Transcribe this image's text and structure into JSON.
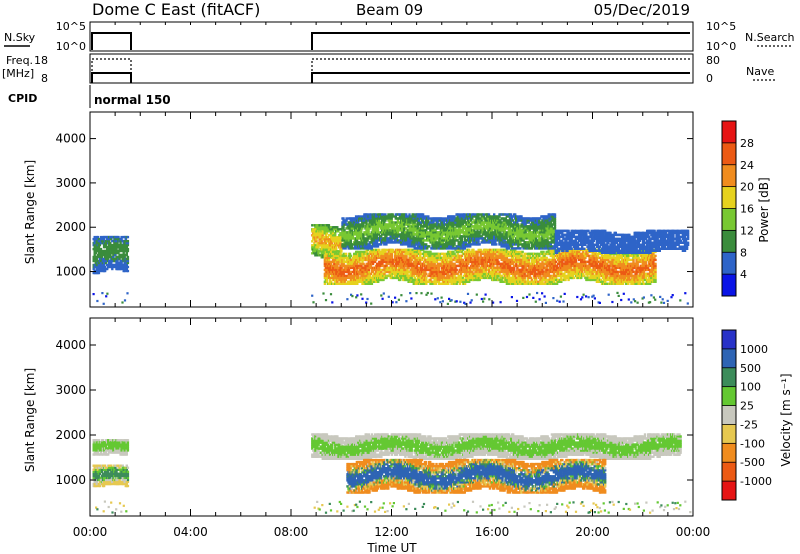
{
  "header": {
    "station": "Dome C East (fitACF)",
    "beam": "Beam 09",
    "date": "05/Dec/2019"
  },
  "noise_panel": {
    "left_label": "N.Sky",
    "right_label": "N.Search",
    "left_ticks": [
      "10^5",
      "10^0"
    ],
    "right_ticks": [
      "10^5",
      "10^0"
    ]
  },
  "freq_panel": {
    "left_label_1": "Freq.",
    "left_label_2": "[MHz]",
    "right_label": "Nave",
    "left_ticks": [
      "18",
      "8"
    ],
    "right_ticks": [
      "80",
      "0"
    ]
  },
  "cpid": {
    "label": "CPID",
    "value": "normal 150"
  },
  "power_panel": {
    "ylabel": "Slant Range [km]",
    "yticks": [
      "4000",
      "3000",
      "2000",
      "1000"
    ],
    "colorbar_label": "Power [dB]",
    "colorbar_ticks": [
      "28",
      "24",
      "20",
      "16",
      "12",
      "8",
      "4"
    ],
    "colors": [
      "#0a14e6",
      "#2e64c8",
      "#3a8c3c",
      "#78c832",
      "#e6d21e",
      "#f08c1e",
      "#ec5a14",
      "#e61414"
    ]
  },
  "velocity_panel": {
    "ylabel": "Slant Range [km]",
    "yticks": [
      "4000",
      "3000",
      "2000",
      "1000"
    ],
    "colorbar_label": "Velocity [m s⁻¹]",
    "colorbar_ticks": [
      "1000",
      "500",
      "100",
      "25",
      "-25",
      "-100",
      "-500",
      "-1000"
    ],
    "colors": [
      "#2832c8",
      "#2e64b4",
      "#3c8c5a",
      "#64c832",
      "#c8c8be",
      "#e6c850",
      "#f08c1e",
      "#ec5a14",
      "#e61414"
    ]
  },
  "time_axis": {
    "xlabel": "Time UT",
    "ticks": [
      "00:00",
      "04:00",
      "08:00",
      "12:00",
      "16:00",
      "20:00",
      "00:00"
    ]
  },
  "chart_data": {
    "type": "heatmap",
    "title": "Dome C East (fitACF)",
    "subtitle": "Beam 09",
    "date": "05/Dec/2019",
    "x_unit": "hours UT",
    "xlim": [
      0,
      24
    ],
    "ylim": [
      200,
      4600
    ],
    "data_intervals_hours": [
      [
        0.1,
        1.55
      ],
      [
        8.8,
        23.9
      ]
    ],
    "power_features": [
      {
        "t": [
          0.1,
          1.5
        ],
        "r": [
          900,
          1800
        ],
        "level_db": [
          4,
          12
        ]
      },
      {
        "t": [
          8.8,
          10.0
        ],
        "r": [
          1300,
          2050
        ],
        "level_db": [
          8,
          24
        ]
      },
      {
        "t": [
          9.3,
          22.5
        ],
        "r": [
          700,
          1500
        ],
        "level_db": [
          12,
          28
        ]
      },
      {
        "t": [
          10.0,
          18.5
        ],
        "r": [
          1500,
          2300
        ],
        "level_db": [
          4,
          16
        ]
      },
      {
        "t": [
          18.5,
          23.8
        ],
        "r": [
          1400,
          1900
        ],
        "level_db": [
          4,
          8
        ]
      }
    ],
    "velocity_features": [
      {
        "t": [
          0.1,
          1.5
        ],
        "r": [
          1500,
          1900
        ],
        "v_ms": [
          -25,
          25
        ]
      },
      {
        "t": [
          0.1,
          1.5
        ],
        "r": [
          800,
          1300
        ],
        "v_ms": [
          -100,
          100
        ]
      },
      {
        "t": [
          8.8,
          23.5
        ],
        "r": [
          1450,
          2000
        ],
        "v_ms": [
          -25,
          25
        ]
      },
      {
        "t": [
          10.2,
          20.5
        ],
        "r": [
          700,
          1450
        ],
        "v_ms": [
          -500,
          500
        ]
      }
    ],
    "noise_sky_range": [
      1,
      100000
    ],
    "frequency_mhz": 10,
    "nave": 30
  }
}
